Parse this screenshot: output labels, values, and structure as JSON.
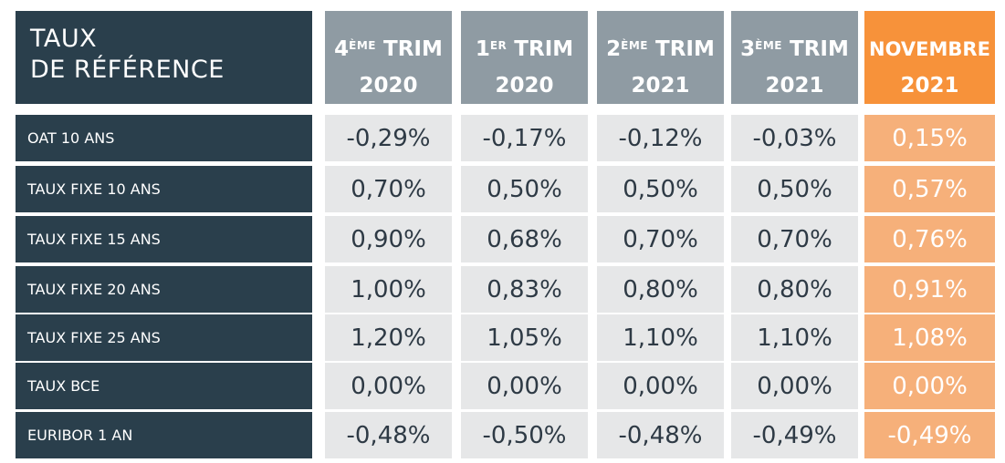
{
  "table": {
    "title_line1": "TAUX",
    "title_line2": "DE RÉFÉRENCE",
    "columns": [
      {
        "prefix": "4",
        "sup": "ÈME",
        "suffix": " TRIM",
        "year": "2020",
        "highlight": false
      },
      {
        "prefix": "1",
        "sup": "ER",
        "suffix": " TRIM",
        "year": "2020",
        "highlight": false
      },
      {
        "prefix": "2",
        "sup": "ÈME",
        "suffix": " TRIM",
        "year": "2021",
        "highlight": false
      },
      {
        "prefix": "3",
        "sup": "ÈME",
        "suffix": " TRIM",
        "year": "2021",
        "highlight": false
      },
      {
        "prefix": "NOVEMBRE",
        "sup": "",
        "suffix": "",
        "year": "2021",
        "highlight": true
      }
    ],
    "rows": [
      {
        "label": "OAT 10 ANS",
        "values": [
          "-0,29%",
          "-0,17%",
          "-0,12%",
          "-0,03%",
          "0,15%"
        ]
      },
      {
        "label": "TAUX FIXE 10 ANS",
        "values": [
          "0,70%",
          "0,50%",
          "0,50%",
          "0,50%",
          "0,57%"
        ]
      },
      {
        "label": "TAUX FIXE 15 ANS",
        "values": [
          "0,90%",
          "0,68%",
          "0,70%",
          "0,70%",
          "0,76%"
        ]
      },
      {
        "label": "TAUX FIXE 20 ANS",
        "values": [
          "1,00%",
          "0,83%",
          "0,80%",
          "0,80%",
          "0,91%"
        ]
      },
      {
        "label": "TAUX FIXE 25 ANS",
        "values": [
          "1,20%",
          "1,05%",
          "1,10%",
          "1,10%",
          "1,08%"
        ]
      },
      {
        "label": "TAUX BCE",
        "values": [
          "0,00%",
          "0,00%",
          "0,00%",
          "0,00%",
          "0,00%"
        ]
      },
      {
        "label": "EURIBOR 1 AN",
        "values": [
          "-0,48%",
          "-0,50%",
          "-0,48%",
          "-0,49%",
          "-0,49%"
        ]
      }
    ],
    "colors": {
      "dark": "#2a3f4c",
      "header_gray": "#8f9ba3",
      "cell_gray": "#e6e7e8",
      "accent_orange": "#f7923a",
      "accent_orange_light": "#f6b07a"
    }
  }
}
